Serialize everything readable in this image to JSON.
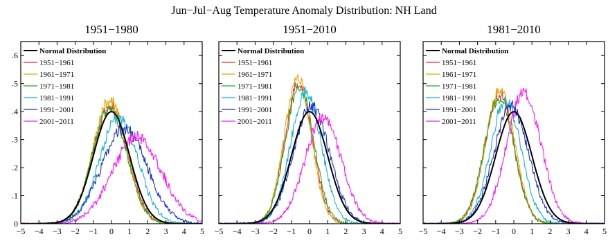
{
  "figure": {
    "title": "Jun−Jul−Aug Temperature Anomaly Distribution: NH Land"
  },
  "chart_data": [
    {
      "type": "line",
      "title": "1951−1980",
      "xlabel": "",
      "ylabel": "",
      "xlim": [
        -5,
        5
      ],
      "ylim": [
        0,
        0.65
      ],
      "x_ticks": [
        -5,
        -4,
        -3,
        -2,
        -1,
        0,
        1,
        2,
        3,
        4,
        5
      ],
      "x_tick_labels": [
        "−5",
        "−4",
        "−3",
        "−2",
        "−1",
        "0",
        "1",
        "2",
        "3",
        "4",
        "5"
      ],
      "y_ticks": [
        0,
        0.1,
        0.2,
        0.3,
        0.4,
        0.5,
        0.6
      ],
      "y_tick_labels": [
        "0",
        ".1",
        ".2",
        ".3",
        ".4",
        ".5",
        ".6"
      ],
      "grid": false,
      "legend_position": "top-left",
      "series": [
        {
          "name": "Normal Distribution",
          "color": "#000000",
          "mean": 0.0,
          "sd": 1.0,
          "peak": 0.4
        },
        {
          "name": "1951−1961",
          "color": "#e03030",
          "mean": -0.05,
          "sd": 0.95,
          "peak": 0.42
        },
        {
          "name": "1961−1971",
          "color": "#f0a000",
          "mean": -0.1,
          "sd": 0.92,
          "peak": 0.44
        },
        {
          "name": "1971−1981",
          "color": "#22aa22",
          "mean": -0.1,
          "sd": 0.95,
          "peak": 0.41
        },
        {
          "name": "1981−1991",
          "color": "#10b0d8",
          "mean": 0.4,
          "sd": 1.05,
          "peak": 0.38
        },
        {
          "name": "1991−2001",
          "color": "#1530c8",
          "mean": 0.7,
          "sd": 1.25,
          "peak": 0.34
        },
        {
          "name": "2001−2011",
          "color": "#ff10ff",
          "mean": 1.4,
          "sd": 1.35,
          "peak": 0.31
        }
      ]
    },
    {
      "type": "line",
      "title": "1951−2010",
      "xlabel": "",
      "ylabel": "",
      "xlim": [
        -5,
        5
      ],
      "ylim": [
        0,
        0.65
      ],
      "x_ticks": [
        -5,
        -4,
        -3,
        -2,
        -1,
        0,
        1,
        2,
        3,
        4,
        5
      ],
      "x_tick_labels": [
        "−5",
        "−4",
        "−3",
        "−2",
        "−1",
        "0",
        "1",
        "2",
        "3",
        "4",
        "5"
      ],
      "y_ticks": [
        0,
        0.1,
        0.2,
        0.3,
        0.4,
        0.5,
        0.6
      ],
      "y_tick_labels": [],
      "grid": false,
      "legend_position": "top-left",
      "series": [
        {
          "name": "Normal Distribution",
          "color": "#000000",
          "mean": 0.0,
          "sd": 1.0,
          "peak": 0.4
        },
        {
          "name": "1951−1961",
          "color": "#e03030",
          "mean": -0.6,
          "sd": 0.76,
          "peak": 0.5
        },
        {
          "name": "1961−1971",
          "color": "#f0a000",
          "mean": -0.65,
          "sd": 0.74,
          "peak": 0.52
        },
        {
          "name": "1971−1981",
          "color": "#22aa22",
          "mean": -0.55,
          "sd": 0.78,
          "peak": 0.49
        },
        {
          "name": "1981−1991",
          "color": "#10b0d8",
          "mean": -0.2,
          "sd": 0.85,
          "peak": 0.47
        },
        {
          "name": "1991−2001",
          "color": "#1530c8",
          "mean": 0.1,
          "sd": 1.0,
          "peak": 0.42
        },
        {
          "name": "2001−2011",
          "color": "#ff10ff",
          "mean": 0.75,
          "sd": 1.0,
          "peak": 0.38
        }
      ]
    },
    {
      "type": "line",
      "title": "1981−2010",
      "xlabel": "",
      "ylabel": "",
      "xlim": [
        -5,
        5
      ],
      "ylim": [
        0,
        0.65
      ],
      "x_ticks": [
        -5,
        -4,
        -3,
        -2,
        -1,
        0,
        1,
        2,
        3,
        4,
        5
      ],
      "x_tick_labels": [
        "−5",
        "−4",
        "−3",
        "−2",
        "−1",
        "0",
        "1",
        "2",
        "3",
        "4",
        "5"
      ],
      "y_ticks": [
        0,
        0.1,
        0.2,
        0.3,
        0.4,
        0.5,
        0.6
      ],
      "y_tick_labels": [],
      "grid": false,
      "legend_position": "top-left",
      "series": [
        {
          "name": "Normal Distribution",
          "color": "#000000",
          "mean": 0.0,
          "sd": 1.0,
          "peak": 0.4
        },
        {
          "name": "1951−1961",
          "color": "#e03030",
          "mean": -0.8,
          "sd": 0.8,
          "peak": 0.46
        },
        {
          "name": "1961−1971",
          "color": "#f0a000",
          "mean": -0.75,
          "sd": 0.8,
          "peak": 0.48
        },
        {
          "name": "1971−1981",
          "color": "#22aa22",
          "mean": -0.8,
          "sd": 0.82,
          "peak": 0.45
        },
        {
          "name": "1981−1991",
          "color": "#10b0d8",
          "mean": -0.45,
          "sd": 0.85,
          "peak": 0.44
        },
        {
          "name": "1991−2001",
          "color": "#1530c8",
          "mean": -0.15,
          "sd": 0.95,
          "peak": 0.42
        },
        {
          "name": "2001−2011",
          "color": "#ff10ff",
          "mean": 0.55,
          "sd": 0.95,
          "peak": 0.47
        }
      ]
    }
  ]
}
